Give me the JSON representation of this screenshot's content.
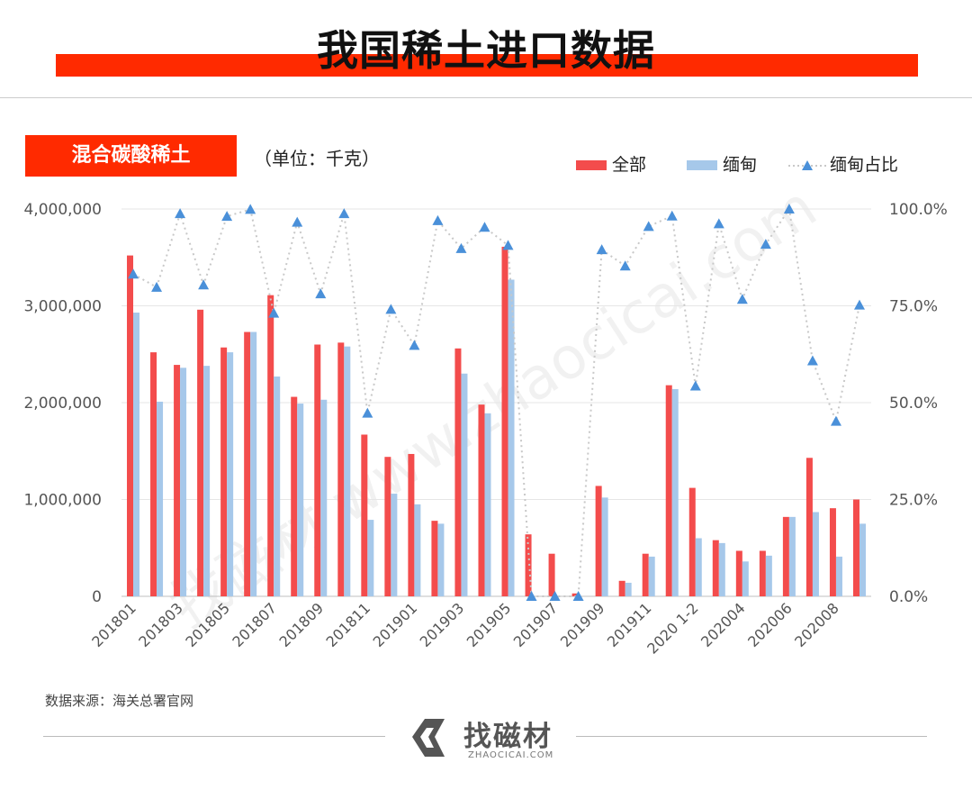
{
  "header": {
    "title": "我国稀土进口数据"
  },
  "panel": {
    "badge": "混合碳酸稀土",
    "unit": "（单位：千克）"
  },
  "source": "数据来源：海关总署官网",
  "logo": {
    "name": "找磁材",
    "sub": "ZHAOCICAI.COM"
  },
  "watermark": "找磁材 www.zhaocicai.com",
  "colors": {
    "all": "#f34c4c",
    "myanmar": "#a6c8ea",
    "ratio": "#4a90d9",
    "title_bar": "#ff2a00"
  },
  "chart_data": {
    "type": "bar",
    "legend": [
      {
        "name": "全部",
        "icon": "bar"
      },
      {
        "name": "缅甸",
        "icon": "bar"
      },
      {
        "name": "缅甸占比",
        "icon": "dotted-line-triangle"
      }
    ],
    "legend_position": "top-right",
    "categories": [
      "201801",
      "201802",
      "201803",
      "201804",
      "201805",
      "201806",
      "201807",
      "201808",
      "201809",
      "201810",
      "201811",
      "201812",
      "201901",
      "201902",
      "201903",
      "201904",
      "201905",
      "201906",
      "201907",
      "201908",
      "201909",
      "201910",
      "201911",
      "201912",
      "2020 1-2",
      "202003",
      "202004",
      "202005",
      "202006",
      "202007",
      "202008",
      "202009"
    ],
    "x_tick_labels": [
      "201801",
      "201803",
      "201805",
      "201807",
      "201809",
      "201811",
      "201901",
      "201903",
      "201905",
      "201907",
      "201909",
      "201911",
      "2020 1-2",
      "202004",
      "202006",
      "202008"
    ],
    "series": [
      {
        "name": "全部",
        "type": "bar",
        "axis": "left",
        "values": [
          3520000,
          2520000,
          2390000,
          2960000,
          2570000,
          2730000,
          3110000,
          2060000,
          2600000,
          2620000,
          1670000,
          1440000,
          1470000,
          780000,
          2560000,
          1980000,
          3610000,
          640000,
          440000,
          30000,
          1140000,
          160000,
          440000,
          2180000,
          1120000,
          580000,
          470000,
          470000,
          820000,
          1430000,
          910000,
          1000000
        ]
      },
      {
        "name": "缅甸",
        "type": "bar",
        "axis": "left",
        "values": [
          2930000,
          2010000,
          2360000,
          2380000,
          2520000,
          2730000,
          2270000,
          1990000,
          2030000,
          2580000,
          790000,
          1060000,
          950000,
          750000,
          2300000,
          1890000,
          3270000,
          0,
          0,
          0,
          1020000,
          140000,
          410000,
          2140000,
          600000,
          550000,
          360000,
          420000,
          820000,
          870000,
          410000,
          750000
        ]
      },
      {
        "name": "缅甸占比",
        "type": "line",
        "axis": "right",
        "style": "dotted",
        "values": [
          0.832,
          0.798,
          0.988,
          0.804,
          0.981,
          0.999,
          0.731,
          0.966,
          0.781,
          0.988,
          0.473,
          0.741,
          0.648,
          0.97,
          0.898,
          0.953,
          0.906,
          0.0,
          0.0,
          0.0,
          0.895,
          0.853,
          0.955,
          0.982,
          0.543,
          0.962,
          0.767,
          0.909,
          1.0,
          0.608,
          0.452,
          0.752
        ]
      }
    ],
    "y_left": {
      "min": 0,
      "max": 4000000,
      "ticks": [
        "0",
        "1,000,000",
        "2,000,000",
        "3,000,000",
        "4,000,000"
      ],
      "tick_values": [
        0,
        1000000,
        2000000,
        3000000,
        4000000
      ]
    },
    "y_right": {
      "min": 0,
      "max": 1,
      "ticks": [
        "0.0%",
        "25.0%",
        "50.0%",
        "75.0%",
        "100.0%"
      ],
      "tick_values": [
        0,
        0.25,
        0.5,
        0.75,
        1.0
      ]
    },
    "grid": "horizontal"
  }
}
